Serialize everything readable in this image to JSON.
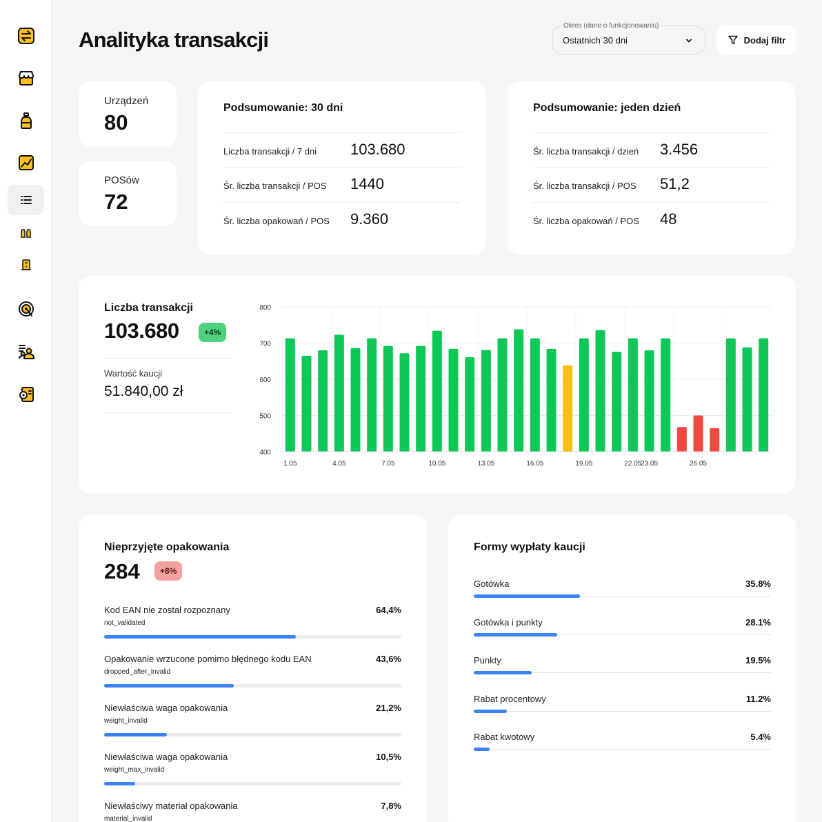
{
  "sidebar": {
    "items": [
      {
        "icon": "exchange-icon"
      },
      {
        "icon": "store-icon"
      },
      {
        "icon": "bottle-icon"
      },
      {
        "icon": "analytics-icon"
      },
      {
        "icon": "list-icon",
        "active": true
      },
      {
        "icon": "bottles-icon"
      },
      {
        "icon": "machine-icon"
      },
      {
        "icon": "target-icon"
      },
      {
        "icon": "users-list-icon"
      },
      {
        "icon": "settings-icon"
      }
    ]
  },
  "header": {
    "title": "Analityka transakcji",
    "period_label": "Okres (dane o funkcjonowaniu)",
    "period_value": "Ostatnich 30 dni",
    "filter_label": "Dodaj filtr"
  },
  "stats": {
    "devices_label": "Urządzeń",
    "devices_value": "80",
    "pos_label": "POSów",
    "pos_value": "72"
  },
  "summary30": {
    "title": "Podsumowanie: 30 dni",
    "rows": [
      {
        "label": "Liczba transakcji / 7 dni",
        "value": "103.680"
      },
      {
        "label": "Śr. liczba transakcji / POS",
        "value": "1440"
      },
      {
        "label": "Śr. liczba opakowań / POS",
        "value": "9.360"
      }
    ]
  },
  "summaryDay": {
    "title": "Podsumowanie: jeden dzień",
    "rows": [
      {
        "label": "Śr. liczba transakcji / dzień",
        "value": "3.456"
      },
      {
        "label": "Śr. liczba transakcji / POS",
        "value": "51,2"
      },
      {
        "label": "Śr. liczba opakowań / POS",
        "value": "48"
      }
    ]
  },
  "transactions": {
    "title": "Liczba transakcji",
    "total": "103.680",
    "badge": "+4%",
    "deposit_label": "Wartość kaucji",
    "deposit_value": "51.840,00 zł"
  },
  "chart_data": {
    "type": "bar",
    "title": "",
    "xlabel": "",
    "ylabel": "",
    "ylim": [
      400,
      800
    ],
    "yticks": [
      400,
      500,
      600,
      700,
      800
    ],
    "grid": true,
    "x_tick_labels": [
      "1.05",
      "4.05",
      "7.05",
      "10.05",
      "13.05",
      "16.05",
      "19.05",
      "22.05",
      "23.05",
      "26.05"
    ],
    "colors": {
      "normal": "#0dc756",
      "warning": "#fbbf0a",
      "alert": "#f4483e"
    },
    "bars": [
      {
        "day": "1.05",
        "value": 713,
        "status": "normal"
      },
      {
        "day": "2.05",
        "value": 665,
        "status": "normal"
      },
      {
        "day": "3.05",
        "value": 680,
        "status": "normal"
      },
      {
        "day": "4.05",
        "value": 723,
        "status": "normal"
      },
      {
        "day": "5.05",
        "value": 686,
        "status": "normal"
      },
      {
        "day": "6.05",
        "value": 713,
        "status": "normal"
      },
      {
        "day": "7.05",
        "value": 692,
        "status": "normal"
      },
      {
        "day": "8.05",
        "value": 672,
        "status": "normal"
      },
      {
        "day": "9.05",
        "value": 692,
        "status": "normal"
      },
      {
        "day": "10.05",
        "value": 734,
        "status": "normal"
      },
      {
        "day": "11.05",
        "value": 684,
        "status": "normal"
      },
      {
        "day": "12.05",
        "value": 661,
        "status": "normal"
      },
      {
        "day": "13.05",
        "value": 681,
        "status": "normal"
      },
      {
        "day": "14.05",
        "value": 713,
        "status": "normal"
      },
      {
        "day": "15.05",
        "value": 738,
        "status": "normal"
      },
      {
        "day": "16.05",
        "value": 713,
        "status": "normal"
      },
      {
        "day": "17.05",
        "value": 684,
        "status": "normal"
      },
      {
        "day": "18.05",
        "value": 638,
        "status": "warning"
      },
      {
        "day": "19.05",
        "value": 713,
        "status": "normal"
      },
      {
        "day": "20.05",
        "value": 736,
        "status": "normal"
      },
      {
        "day": "21.05",
        "value": 676,
        "status": "normal"
      },
      {
        "day": "22.05",
        "value": 713,
        "status": "normal"
      },
      {
        "day": "23.05",
        "value": 680,
        "status": "normal"
      },
      {
        "day": "24.05",
        "value": 713,
        "status": "normal"
      },
      {
        "day": "25.05",
        "value": 468,
        "status": "alert"
      },
      {
        "day": "26.05",
        "value": 500,
        "status": "alert"
      },
      {
        "day": "27.05",
        "value": 465,
        "status": "alert"
      },
      {
        "day": "28.05",
        "value": 713,
        "status": "normal"
      },
      {
        "day": "29.05",
        "value": 688,
        "status": "normal"
      },
      {
        "day": "30.05",
        "value": 713,
        "status": "normal"
      }
    ]
  },
  "rejected": {
    "title": "Nieprzyjęte opakowania",
    "total": "284",
    "badge": "+8%",
    "items": [
      {
        "name": "Kod EAN nie został rozpoznany",
        "code": "not_validated",
        "pct": "64,4%",
        "value": 64.4
      },
      {
        "name": "Opakowanie wrzucone pomimo błędnego kodu EAN",
        "code": "dropped_after_invalid",
        "pct": "43,6%",
        "value": 43.6
      },
      {
        "name": "Niewłaściwa waga opakowania",
        "code": "weight_invalid",
        "pct": "21,2%",
        "value": 21.2
      },
      {
        "name": "Niewłaściwa waga opakowania",
        "code": "weight_max_invalid",
        "pct": "10,5%",
        "value": 10.5
      },
      {
        "name": "Niewłaściwy materiał opakowania",
        "code": "material_invalid",
        "pct": "7,8%",
        "value": 7.8
      }
    ]
  },
  "payouts": {
    "title": "Formy wypłaty kaucji",
    "items": [
      {
        "name": "Gotówka",
        "pct": "35.8%",
        "value": 35.8
      },
      {
        "name": "Gotówka i punkty",
        "pct": "28.1%",
        "value": 28.1
      },
      {
        "name": "Punkty",
        "pct": "19.5%",
        "value": 19.5
      },
      {
        "name": "Rabat procentowy",
        "pct": "11.2%",
        "value": 11.2
      },
      {
        "name": "Rabat kwotowy",
        "pct": "5.4%",
        "value": 5.4
      }
    ]
  }
}
